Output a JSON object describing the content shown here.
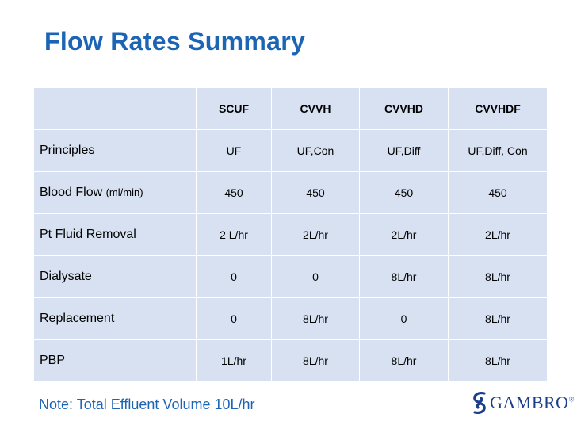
{
  "title": "Flow Rates Summary",
  "table": {
    "headers": [
      "",
      "SCUF",
      "CVVH",
      "CVVHD",
      "CVVHDF"
    ],
    "rows": [
      {
        "label": "Principles",
        "unit": "",
        "values": [
          "UF",
          "UF,Con",
          "UF,Diff",
          "UF,Diff, Con"
        ]
      },
      {
        "label": "Blood Flow ",
        "unit": "(ml/min)",
        "values": [
          "450",
          "450",
          "450",
          "450"
        ]
      },
      {
        "label": "Pt Fluid Removal",
        "unit": "",
        "values": [
          "2 L/hr",
          "2L/hr",
          "2L/hr",
          "2L/hr"
        ]
      },
      {
        "label": "Dialysate",
        "unit": "",
        "values": [
          "0",
          "0",
          "8L/hr",
          "8L/hr"
        ]
      },
      {
        "label": "Replacement",
        "unit": "",
        "values": [
          "0",
          "8L/hr",
          "0",
          "8L/hr"
        ]
      },
      {
        "label": "PBP",
        "unit": "",
        "values": [
          "1L/hr",
          "8L/hr",
          "8L/hr",
          "8L/hr"
        ]
      }
    ]
  },
  "note": "Note: Total Effluent Volume 10L/hr",
  "logo": {
    "text": "GAMBRO",
    "registered": "®"
  },
  "colors": {
    "title": "#1c64b4",
    "cell_background": "#d7e1f1",
    "grid_lines": "#ffffff",
    "logo": "#1c3f8c"
  }
}
